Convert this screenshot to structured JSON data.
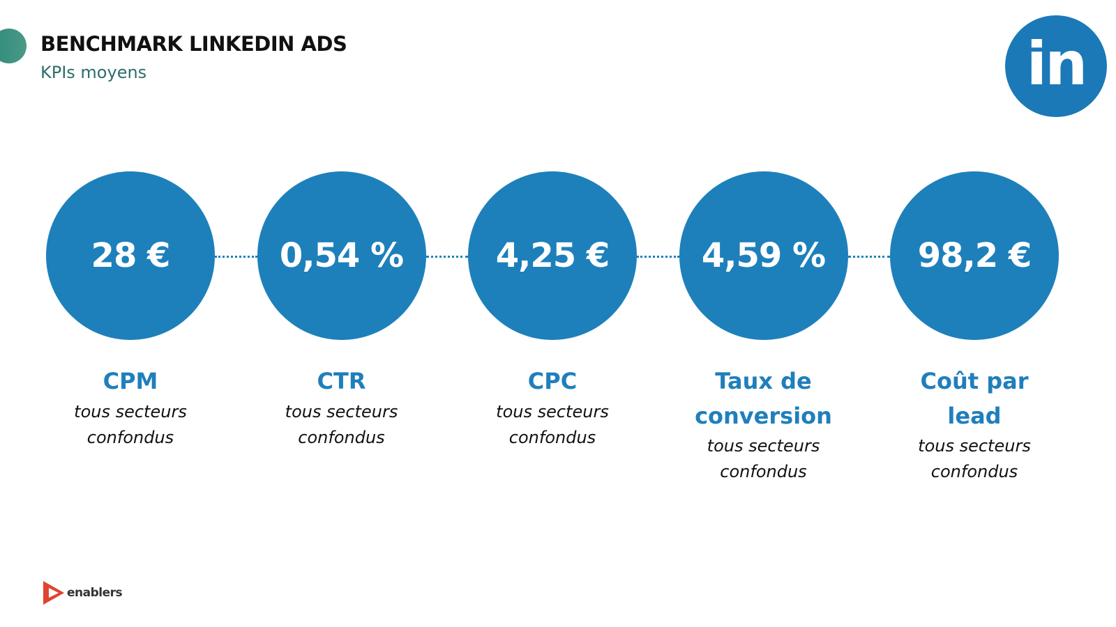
{
  "header": {
    "title": "BENCHMARK LINKEDIN ADS",
    "subtitle": "KPIs moyens"
  },
  "kpis": [
    {
      "value": "28 €",
      "label": "CPM",
      "note": "tous secteurs confondus"
    },
    {
      "value": "0,54 %",
      "label": "CTR",
      "note": "tous secteurs confondus"
    },
    {
      "value": "4,25 €",
      "label": "CPC",
      "note": "tous secteurs confondus"
    },
    {
      "value": "4,59 %",
      "label": "Taux de conversion",
      "note": "tous secteurs confondus"
    },
    {
      "value": "98,2 €",
      "label": "Coût par lead",
      "note": "tous secteurs confondus"
    }
  ],
  "logos": {
    "linkedin": "in",
    "brand": "enablers"
  }
}
